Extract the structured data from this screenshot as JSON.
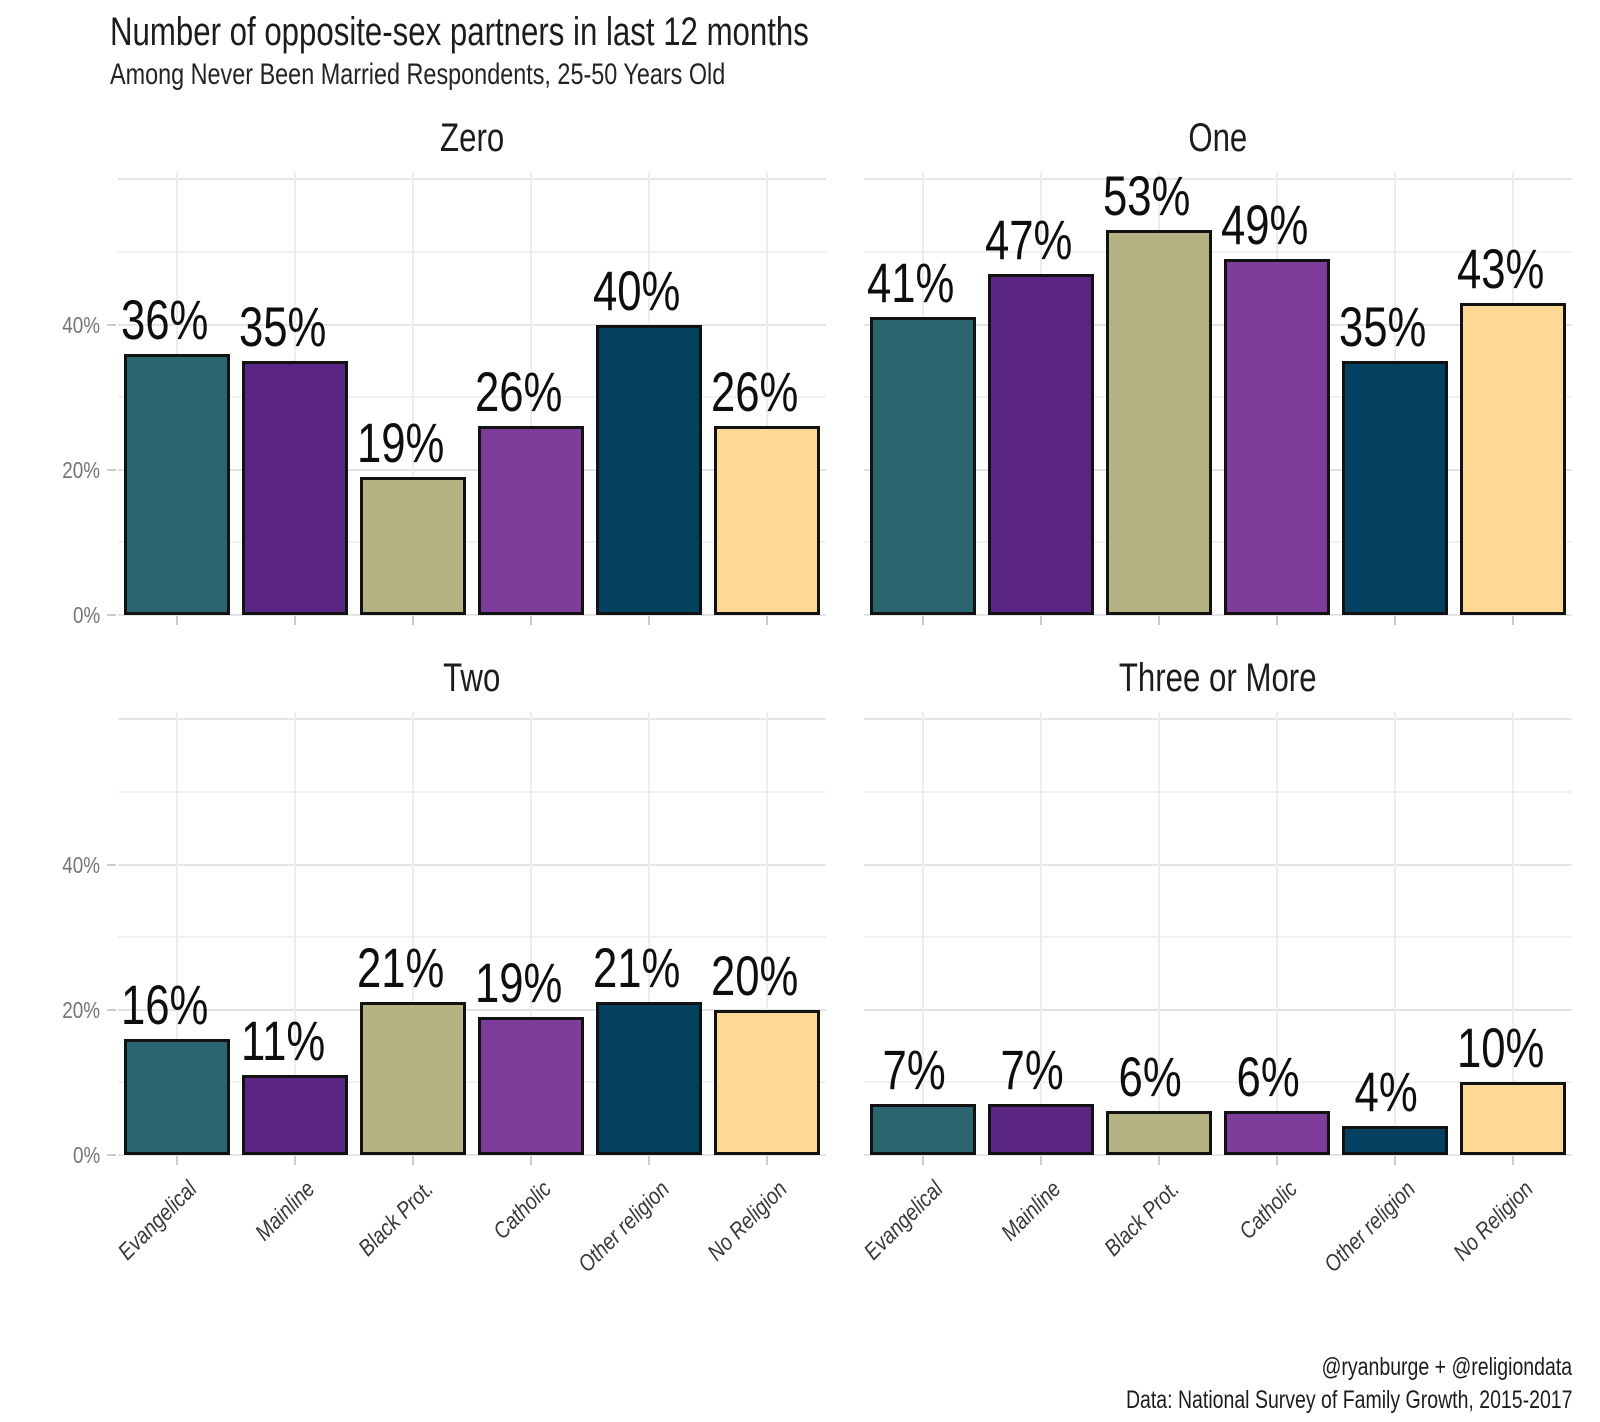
{
  "chart_data": {
    "type": "bar",
    "title": "Number of opposite-sex partners in last 12 months",
    "subtitle": "Among Never Been Married Respondents, 25-50 Years Old",
    "categories": [
      {
        "label": "Evangelical",
        "color": "#2b6570"
      },
      {
        "label": "Mainline",
        "color": "#5a2482"
      },
      {
        "label": "Black Prot.",
        "color": "#b5b384"
      },
      {
        "label": "Catholic",
        "color": "#7e3d9b"
      },
      {
        "label": "Other religion",
        "color": "#04405f"
      },
      {
        "label": "No Religion",
        "color": "#fdd995"
      }
    ],
    "facets": [
      {
        "label": "Zero",
        "values": [
          36,
          35,
          19,
          26,
          40,
          26
        ]
      },
      {
        "label": "One",
        "values": [
          41,
          47,
          53,
          49,
          35,
          43
        ]
      },
      {
        "label": "Two",
        "values": [
          16,
          11,
          21,
          19,
          21,
          20
        ]
      },
      {
        "label": "Three or More",
        "values": [
          7,
          7,
          6,
          6,
          4,
          10
        ]
      }
    ],
    "value_suffix": "%",
    "y_axis": {
      "tick_labels": [
        "0%",
        "20%",
        "40%"
      ],
      "tick_values": [
        0,
        20,
        40
      ],
      "ymax": 61,
      "grid_interval": 10,
      "grid": true
    },
    "bar_outline_color": "#121212",
    "legend_position": "none",
    "caption": {
      "line1": "@ryanburge + @religiondata",
      "line2": "Data: National Survey of Family Growth, 2015-2017"
    }
  }
}
